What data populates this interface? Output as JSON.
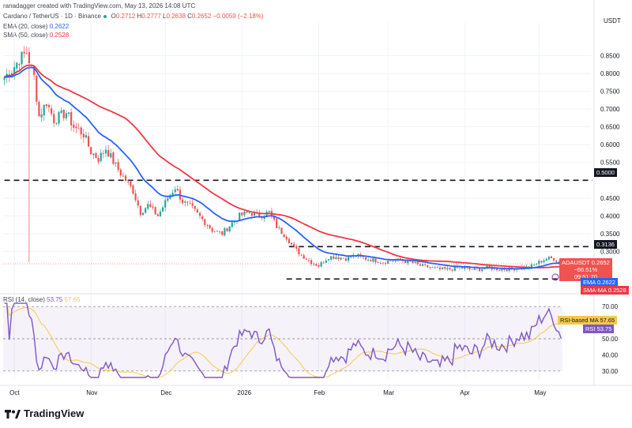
{
  "header": {
    "created": "ranadagger created with TradingView.com, May 13, 2026 14:08 UTC",
    "symbol_line": "Cardano / TetherUS · 1D · Binance",
    "ohlc": {
      "o": "0.2712",
      "h": "0.2777",
      "l": "0.2638",
      "c": "0.2652",
      "chg": "−0.0059 (−2.18%)"
    },
    "ema_label": "EMA (20, close)",
    "ema_value": "0.2622",
    "sma_label": "SMA (50, close)",
    "sma_value": "0.2528",
    "rsi_label": "RSI (14, close)",
    "rsi_value": "53.75",
    "rsi_ma_value": "57.65"
  },
  "currency": "USDT",
  "colors": {
    "up": "#26a69a",
    "down": "#ef5350",
    "ema": "#2962ff",
    "sma": "#f23645",
    "rsi": "#7e57c2",
    "rsi_ma": "#f7c948",
    "level": "#131722"
  },
  "price_axis": {
    "min": 0.19,
    "max": 0.9,
    "ticks": [
      "0.8500",
      "0.8000",
      "0.7500",
      "0.7000",
      "0.6500",
      "0.6000",
      "0.5500",
      "0.4500",
      "0.4000",
      "0.3500",
      "0.3000"
    ]
  },
  "levels": [
    {
      "name": "resistance-high",
      "value": 0.5,
      "label": "0.5000",
      "x_start_day": 0
    },
    {
      "name": "resistance-range",
      "value": 0.3136,
      "label": "0.3136",
      "x_start_day": 115
    },
    {
      "name": "support-range",
      "value": 0.2225,
      "label": "",
      "x_start_day": 114
    }
  ],
  "price_tags": {
    "ada_label": "ADAUSDT",
    "ada_value": "0.2652",
    "ada_change": "−66.51%",
    "ada_timer": "09:51:20",
    "ema_tag": "EMA",
    "ema_value": "0.2622",
    "sma_tag": "SMA-MA",
    "sma_value": "0.2528"
  },
  "rsi_axis": {
    "min": 25,
    "max": 75,
    "ticks": [
      "70.00",
      "50.00",
      "40.00",
      "30.00"
    ],
    "band_upper": 70,
    "band_lower": 30
  },
  "rsi_tags": {
    "ma_label": "RSI-based MA",
    "ma_value": "57.65",
    "rsi_label": "RSI",
    "rsi_value": "53.75"
  },
  "x_axis": {
    "labels": [
      {
        "text": "Oct",
        "day": 4
      },
      {
        "text": "Nov",
        "day": 35
      },
      {
        "text": "Dec",
        "day": 65
      },
      {
        "text": "2026",
        "day": 96
      },
      {
        "text": "Feb",
        "day": 127
      },
      {
        "text": "Mar",
        "day": 155
      },
      {
        "text": "Apr",
        "day": 186
      },
      {
        "text": "May",
        "day": 216
      }
    ]
  },
  "chart_data": {
    "type": "candlestick",
    "title": "Cardano / TetherUS · 1D · Binance",
    "price_anchors": [
      [
        0,
        0.79
      ],
      [
        3,
        0.81
      ],
      [
        6,
        0.84
      ],
      [
        9,
        0.86
      ],
      [
        12,
        0.79
      ],
      [
        14,
        0.68
      ],
      [
        17,
        0.72
      ],
      [
        20,
        0.67
      ],
      [
        25,
        0.69
      ],
      [
        28,
        0.65
      ],
      [
        32,
        0.63
      ],
      [
        35,
        0.58
      ],
      [
        38,
        0.56
      ],
      [
        41,
        0.59
      ],
      [
        45,
        0.54
      ],
      [
        48,
        0.51
      ],
      [
        52,
        0.47
      ],
      [
        55,
        0.41
      ],
      [
        58,
        0.43
      ],
      [
        62,
        0.4
      ],
      [
        66,
        0.45
      ],
      [
        69,
        0.48
      ],
      [
        72,
        0.44
      ],
      [
        76,
        0.42
      ],
      [
        80,
        0.39
      ],
      [
        84,
        0.36
      ],
      [
        88,
        0.35
      ],
      [
        92,
        0.38
      ],
      [
        95,
        0.4
      ],
      [
        99,
        0.41
      ],
      [
        103,
        0.4
      ],
      [
        107,
        0.41
      ],
      [
        110,
        0.37
      ],
      [
        114,
        0.34
      ],
      [
        117,
        0.31
      ],
      [
        120,
        0.29
      ],
      [
        124,
        0.27
      ],
      [
        127,
        0.26
      ],
      [
        131,
        0.285
      ],
      [
        134,
        0.285
      ],
      [
        138,
        0.28
      ],
      [
        142,
        0.29
      ],
      [
        146,
        0.28
      ],
      [
        150,
        0.275
      ],
      [
        153,
        0.27
      ],
      [
        157,
        0.275
      ],
      [
        160,
        0.275
      ],
      [
        164,
        0.27
      ],
      [
        168,
        0.26
      ],
      [
        172,
        0.255
      ],
      [
        176,
        0.25
      ],
      [
        180,
        0.25
      ],
      [
        184,
        0.255
      ],
      [
        188,
        0.25
      ],
      [
        192,
        0.25
      ],
      [
        196,
        0.255
      ],
      [
        200,
        0.25
      ],
      [
        204,
        0.25
      ],
      [
        208,
        0.255
      ],
      [
        212,
        0.255
      ],
      [
        216,
        0.27
      ],
      [
        219,
        0.28
      ],
      [
        222,
        0.28
      ],
      [
        225,
        0.2652
      ]
    ],
    "days": 226,
    "ema_period": 20,
    "sma_period": 50,
    "rsi_period": 14,
    "rsi_ma_period": 14,
    "ema_last": 0.2622,
    "sma_last": 0.2528,
    "last_close": 0.2652,
    "ylim": [
      0.19,
      0.9
    ]
  }
}
